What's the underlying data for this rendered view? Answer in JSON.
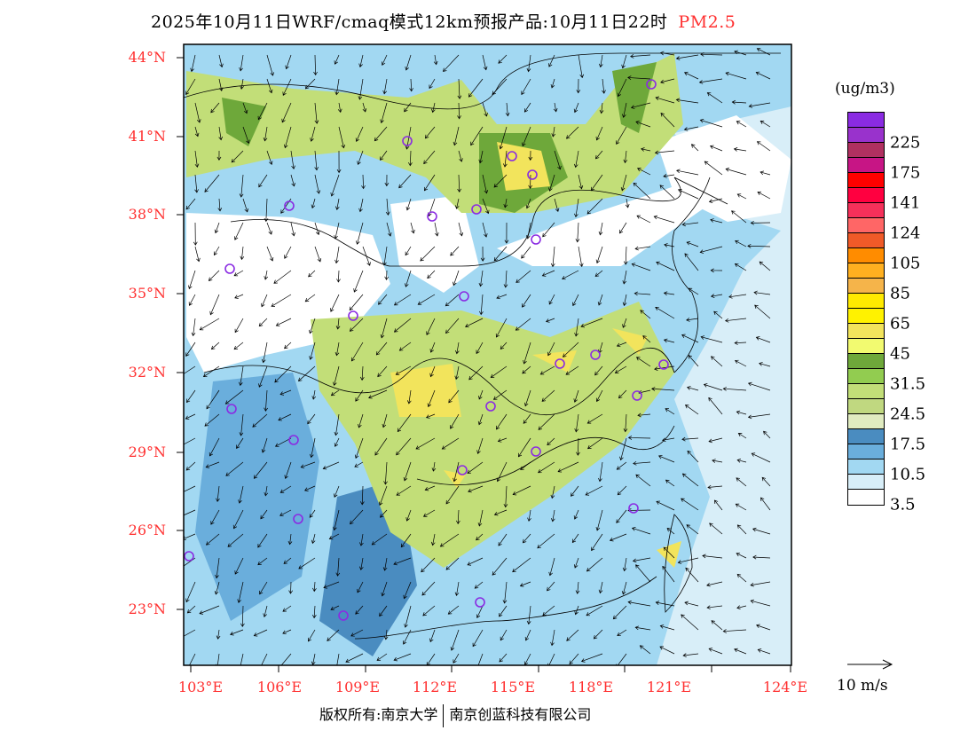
{
  "title": {
    "main": "2025年10月11日WRF/cmaq模式12km预报产品:10月11日22时",
    "species": "PM2.5"
  },
  "lat_labels": [
    "44°N",
    "41°N",
    "38°N",
    "35°N",
    "32°N",
    "29°N",
    "26°N",
    "23°N"
  ],
  "lon_labels": [
    "103°E",
    "106°E",
    "109°E",
    "112°E",
    "115°E",
    "118°E",
    "121°E",
    "124°E"
  ],
  "colorbar": {
    "unit": "(ug/m3)",
    "colors": [
      "#8a2be2",
      "#9932cc",
      "#b03060",
      "#c71585",
      "#ff0000",
      "#ff0040",
      "#f5305a",
      "#ff6666",
      "#f05a28",
      "#ff8c00",
      "#ffb020",
      "#f5b44a",
      "#ffea00",
      "#fff200",
      "#f2e45c",
      "#f2fa70",
      "#6ea83a",
      "#92cc50",
      "#c2de78",
      "#c0d880",
      "#e0ebc0",
      "#4a8cc0",
      "#6aaedc",
      "#a2d8f2",
      "#d8eef8",
      "#ffffff"
    ],
    "labels": [
      "225",
      "175",
      "141",
      "124",
      "105",
      "85",
      "65",
      "45",
      "31.5",
      "24.5",
      "17.5",
      "10.5",
      "3.5"
    ]
  },
  "vector_key": {
    "label": "10 m/s"
  },
  "footer": {
    "left": "版权所有:南京大学",
    "right": "南京创蓝科技有限公司"
  }
}
